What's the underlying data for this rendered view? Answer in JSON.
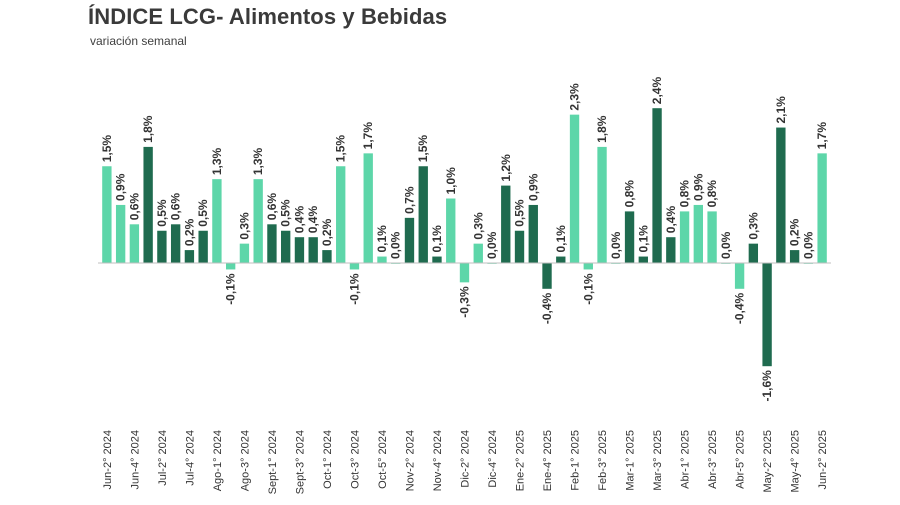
{
  "header": {
    "title": "ÍNDICE LCG- Alimentos y Bebidas",
    "subtitle": "variación semanal"
  },
  "colors": {
    "light": "#5dd6a9",
    "dark": "#1f6b4f",
    "axis": "#bfbfbf"
  },
  "chart_data": {
    "type": "bar",
    "title": "ÍNDICE LCG- Alimentos y Bebidas",
    "subtitle": "variación semanal",
    "xlabel": "",
    "ylabel": "",
    "ylim": [
      -1.6,
      2.4
    ],
    "grid": false,
    "legend": "none",
    "tick_labels": [
      "Jun-2° 2024",
      "Jun-4° 2024",
      "Jul-2° 2024",
      "Jul-4° 2024",
      "Ago-1° 2024",
      "Ago-3° 2024",
      "Sept-1° 2024",
      "Sept-3° 2024",
      "Oct-1° 2024",
      "Oct-3° 2024",
      "Oct-5° 2024",
      "Nov-2° 2024",
      "Nov-4° 2024",
      "Dic-2° 2024",
      "Dic-4° 2024",
      "Ene-2° 2025",
      "Ene-4° 2025",
      "Feb-1° 2025",
      "Feb-3° 2025",
      "Mar-1° 2025",
      "Mar-3° 2025",
      "Abr-1° 2025",
      "Abr-3° 2025",
      "Abr-5° 2025",
      "May-2° 2025",
      "May-4° 2025",
      "Jun-2° 2025"
    ],
    "values": [
      1.5,
      0.9,
      0.6,
      1.8,
      0.5,
      0.6,
      0.2,
      0.5,
      1.3,
      -0.1,
      0.3,
      1.3,
      0.6,
      0.5,
      0.4,
      0.4,
      0.2,
      1.5,
      -0.1,
      1.7,
      0.1,
      0.0,
      0.7,
      1.5,
      0.1,
      1.0,
      -0.3,
      0.3,
      0.0,
      1.2,
      0.5,
      0.9,
      -0.4,
      0.1,
      2.3,
      -0.1,
      1.8,
      0.0,
      0.8,
      0.1,
      2.4,
      0.4,
      0.8,
      0.9,
      0.8,
      0.0,
      -0.4,
      0.3,
      -1.6,
      2.1,
      0.2,
      0.0,
      1.7
    ],
    "labels": [
      "1,5%",
      "0,9%",
      "0,6%",
      "1,8%",
      "0,5%",
      "0,6%",
      "0,2%",
      "0,5%",
      "1,3%",
      "-0,1%",
      "0,3%",
      "1,3%",
      "0,6%",
      "0,5%",
      "0,4%",
      "0,4%",
      "0,2%",
      "1,5%",
      "-0,1%",
      "1,7%",
      "0,1%",
      "0,0%",
      "0,7%",
      "1,5%",
      "0,1%",
      "1,0%",
      "-0,3%",
      "0,3%",
      "0,0%",
      "1,2%",
      "0,5%",
      "0,9%",
      "-0,4%",
      "0,1%",
      "2,3%",
      "-0,1%",
      "1,8%",
      "0,0%",
      "0,8%",
      "0,1%",
      "2,4%",
      "0,4%",
      "0,8%",
      "0,9%",
      "0,8%",
      "0,0%",
      "-0,4%",
      "0,3%",
      "-1,6%",
      "2,1%",
      "0,2%",
      "0,0%",
      "1,7%"
    ],
    "bar_colors": [
      "light",
      "light",
      "light",
      "dark",
      "dark",
      "dark",
      "dark",
      "dark",
      "light",
      "light",
      "light",
      "light",
      "dark",
      "dark",
      "dark",
      "dark",
      "dark",
      "light",
      "light",
      "light",
      "light",
      "light",
      "dark",
      "dark",
      "dark",
      "light",
      "light",
      "light",
      "light",
      "dark",
      "dark",
      "dark",
      "dark",
      "dark",
      "light",
      "light",
      "light",
      "light",
      "dark",
      "dark",
      "dark",
      "dark",
      "light",
      "light",
      "light",
      "light",
      "light",
      "dark",
      "dark",
      "dark",
      "dark",
      "light",
      "light"
    ]
  }
}
